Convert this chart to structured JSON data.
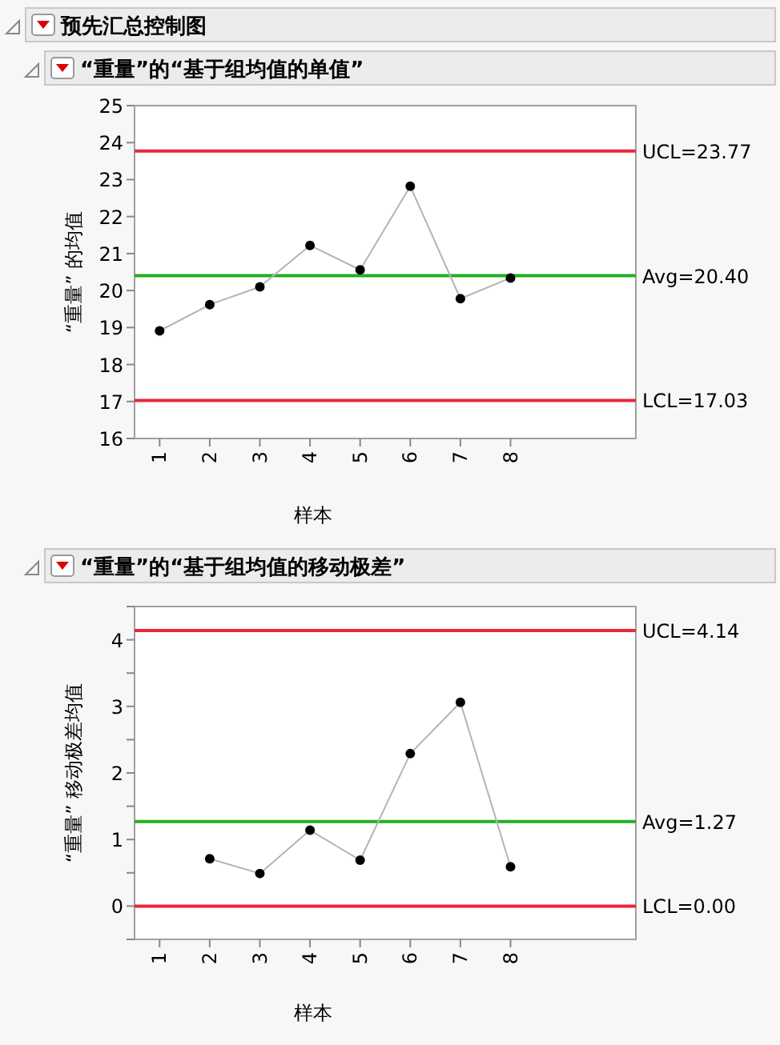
{
  "chart_data": [
    {
      "type": "line",
      "title": "预先汇总控制图",
      "subtitle": "“重量”的“基于组均值的单值”",
      "xlabel": "样本",
      "ylabel": "“重量” 的均值",
      "categories": [
        "1",
        "2",
        "3",
        "4",
        "5",
        "6",
        "7",
        "8"
      ],
      "series": [
        {
          "color": "#000000",
          "values": [
            18.91,
            19.62,
            20.1,
            21.22,
            20.56,
            22.82,
            19.78,
            20.34
          ]
        }
      ],
      "marker": "circle",
      "line_style": "solid",
      "ylim": [
        16,
        25
      ],
      "yticks": [
        16,
        17,
        18,
        19,
        20,
        21,
        22,
        23,
        24,
        25
      ],
      "ref_lines": [
        {
          "axis": "y",
          "value": 23.77,
          "label": "UCL=23.77",
          "color": "#e8283c"
        },
        {
          "axis": "y",
          "value": 20.4,
          "label": "Avg=20.40",
          "color": "#22b022"
        },
        {
          "axis": "y",
          "value": 17.03,
          "label": "LCL=17.03",
          "color": "#e8283c"
        }
      ]
    },
    {
      "type": "line",
      "title": "“重量”的“基于组均值的移动极差”",
      "xlabel": "样本",
      "ylabel": "“重量” 移动极差均值",
      "categories": [
        "1",
        "2",
        "3",
        "4",
        "5",
        "6",
        "7",
        "8"
      ],
      "series": [
        {
          "color": "#000000",
          "values": [
            null,
            0.71,
            0.49,
            1.14,
            0.69,
            2.29,
            3.06,
            0.59
          ]
        }
      ],
      "marker": "circle",
      "line_style": "solid",
      "ylim": [
        -0.5,
        4.5
      ],
      "yticks": [
        {
          "value": -0.5,
          "label": null
        },
        0,
        {
          "value": 0.5,
          "label": null
        },
        1,
        {
          "value": 1.5,
          "label": null
        },
        2,
        {
          "value": 2.5,
          "label": null
        },
        3,
        {
          "value": 3.5,
          "label": null
        },
        4,
        {
          "value": 4.5,
          "label": null
        }
      ],
      "ref_lines": [
        {
          "axis": "y",
          "value": 4.14,
          "label": "UCL=4.14",
          "color": "#e8283c"
        },
        {
          "axis": "y",
          "value": 1.27,
          "label": "Avg=1.27",
          "color": "#22b022"
        },
        {
          "axis": "y",
          "value": 0.0,
          "label": "LCL=0.00",
          "color": "#e8283c"
        }
      ]
    }
  ]
}
